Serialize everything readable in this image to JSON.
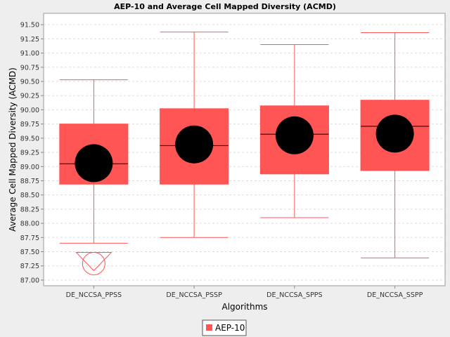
{
  "chart_data": {
    "type": "boxplot",
    "title": "AEP-10 and Average Cell Mapped Diversity (ACMD)",
    "xlabel": "Algorithms",
    "ylabel": "Average Cell Mapped Diversity (ACMD)",
    "ylim": [
      86.9,
      91.7
    ],
    "yticks": [
      "87.00",
      "87.25",
      "87.50",
      "87.75",
      "88.00",
      "88.25",
      "88.50",
      "88.75",
      "89.00",
      "89.25",
      "89.50",
      "89.75",
      "90.00",
      "90.25",
      "90.50",
      "90.75",
      "91.00",
      "91.25",
      "91.50"
    ],
    "grid": true,
    "legend_position": "bottom-center",
    "series": [
      {
        "name": "AEP-10",
        "color": "#ff5555",
        "mean_color": "#000000",
        "boxes": [
          {
            "category": "DE_NCCSA_PPSS",
            "min": 87.65,
            "q1": 88.69,
            "median": 89.05,
            "q3": 89.75,
            "max": 90.53,
            "mean": 89.06,
            "outliers": [
              87.29
            ]
          },
          {
            "category": "DE_NCCSA_PSSP",
            "min": 87.75,
            "q1": 88.69,
            "median": 89.37,
            "q3": 90.02,
            "max": 91.37,
            "mean": 89.39,
            "outliers": []
          },
          {
            "category": "DE_NCCSA_SPPS",
            "min": 88.1,
            "q1": 88.87,
            "median": 89.57,
            "q3": 90.07,
            "max": 91.15,
            "mean": 89.55,
            "outliers": []
          },
          {
            "category": "DE_NCCSA_SSPP",
            "min": 87.39,
            "q1": 88.93,
            "median": 89.71,
            "q3": 90.17,
            "max": 91.36,
            "mean": 89.58,
            "outliers": []
          }
        ]
      }
    ]
  }
}
